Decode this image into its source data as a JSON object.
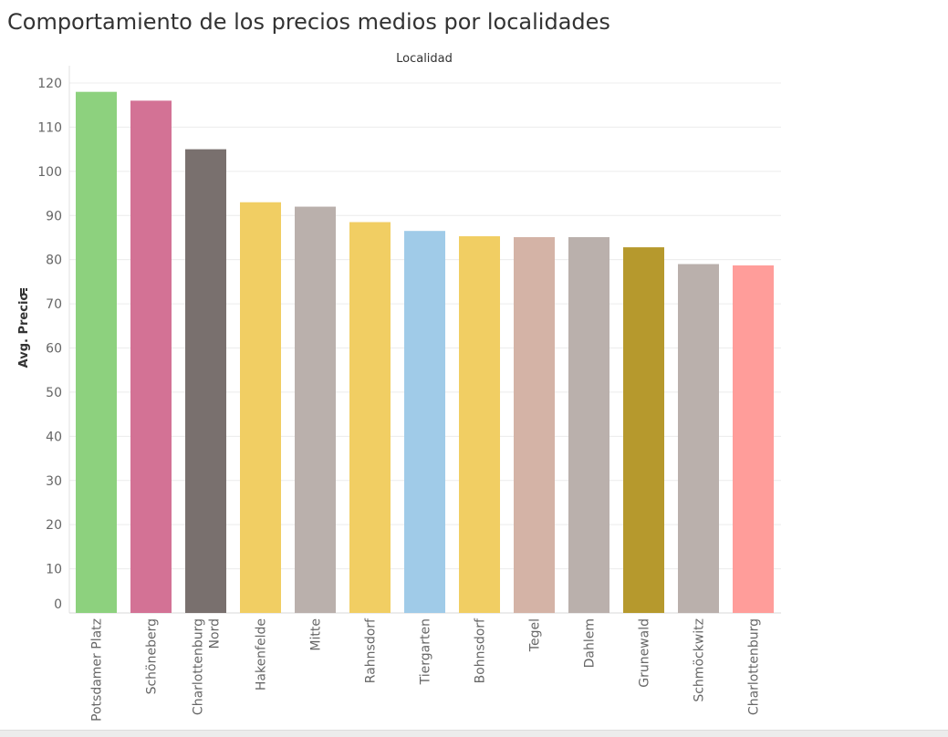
{
  "title": "Comportamiento de los precios medios por localidades",
  "chart_data": {
    "type": "bar",
    "column_header": "Localidad",
    "ylabel": "Avg. Precio",
    "ylim": [
      0,
      120
    ],
    "yticks": [
      0,
      10,
      20,
      30,
      40,
      50,
      60,
      70,
      80,
      90,
      100,
      110,
      120
    ],
    "grid": true,
    "categories": [
      "Potsdamer Platz",
      "Schöneberg",
      "Charlottenburg Nord",
      "Hakenfelde",
      "Mitte",
      "Rahnsdorf",
      "Tiergarten",
      "Bohnsdorf",
      "Tegel",
      "Dahlem",
      "Grunewald",
      "Schmöckwitz",
      "Charlottenburg"
    ],
    "values": [
      118.0,
      116.0,
      105.0,
      93.0,
      92.0,
      88.5,
      86.5,
      85.3,
      85.1,
      85.1,
      82.8,
      79.0,
      78.7
    ],
    "colors": [
      "#8dd17e",
      "#d37295",
      "#79706e",
      "#f1ce63",
      "#bab0ac",
      "#f1ce63",
      "#a0cbe8",
      "#f1ce63",
      "#d4b3a6",
      "#bab0ac",
      "#b6992d",
      "#bab0ac",
      "#ff9d9a"
    ]
  }
}
